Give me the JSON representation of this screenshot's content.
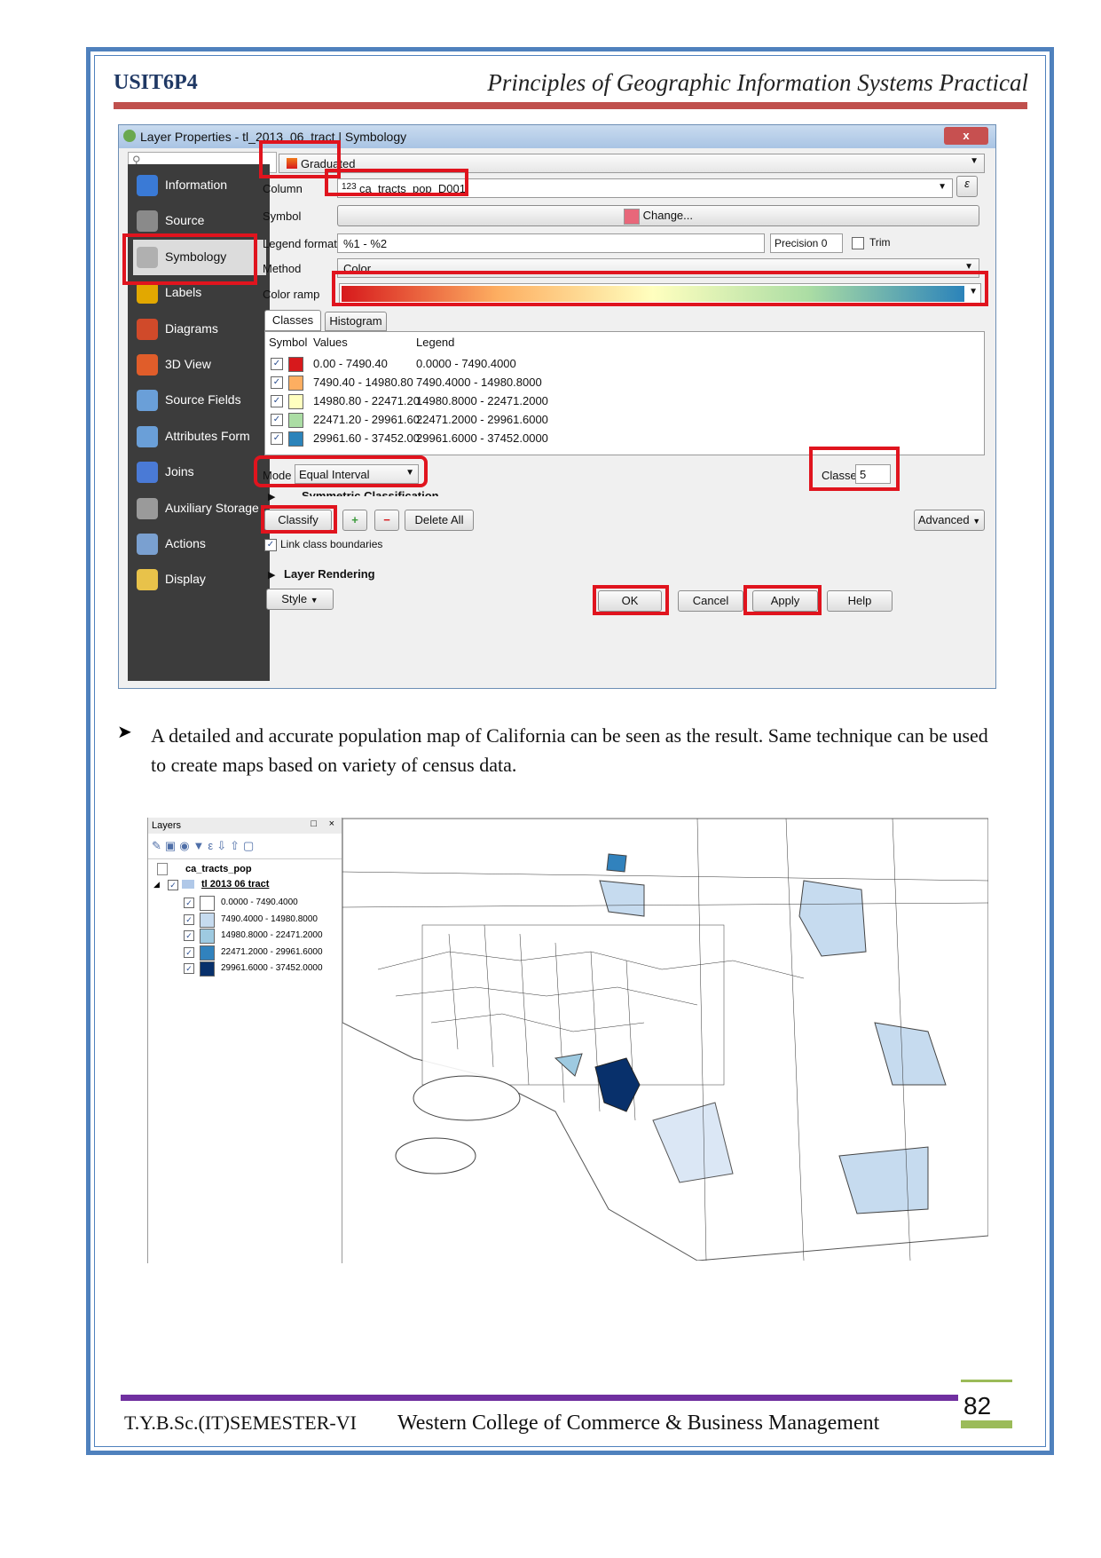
{
  "header": {
    "code": "USIT6P4",
    "title": "Principles of Geographic Information Systems Practical"
  },
  "dialog": {
    "title": "Layer Properties - tl_2013_06_tract | Symbology",
    "close": "x",
    "sidebar": [
      "Information",
      "Source",
      "Symbology",
      "Labels",
      "Diagrams",
      "3D View",
      "Source Fields",
      "Attributes Form",
      "Joins",
      "Auxiliary Storage",
      "Actions",
      "Display"
    ],
    "renderer": "Graduated",
    "column_label": "Column",
    "column_value": "ca_tracts_pop_D001",
    "column_prefix": "123",
    "symbol_label": "Symbol",
    "change_btn": "Change...",
    "legend_format_label": "Legend format",
    "legend_format_value": "%1 - %2",
    "precision_label": "Precision 0",
    "trim_label": "Trim",
    "method_label": "Method",
    "method_value": "Color",
    "color_ramp_label": "Color ramp",
    "tabs": [
      "Classes",
      "Histogram"
    ],
    "table_headers": [
      "Symbol",
      "Values",
      "Legend"
    ],
    "rows": [
      {
        "color": "#d7191c",
        "values": "0.00 - 7490.40",
        "legend": "0.0000 - 7490.4000"
      },
      {
        "color": "#fdae61",
        "values": "7490.40 - 14980.80",
        "legend": "7490.4000 - 14980.8000"
      },
      {
        "color": "#ffffbf",
        "values": "14980.80 - 22471.20",
        "legend": "14980.8000 - 22471.2000"
      },
      {
        "color": "#abdda4",
        "values": "22471.20 - 29961.60",
        "legend": "22471.2000 - 29961.6000"
      },
      {
        "color": "#2b83ba",
        "values": "29961.60 - 37452.00",
        "legend": "29961.6000 - 37452.0000"
      }
    ],
    "mode_label": "Mode",
    "mode_value": "Equal Interval",
    "classes_label": "Classes",
    "classes_value": "5",
    "symmetric": "Symmetric Classification",
    "classify_btn": "Classify",
    "delete_all_btn": "Delete All",
    "advanced_btn": "Advanced",
    "link_boundaries": "Link class boundaries",
    "layer_rendering": "Layer Rendering",
    "style_btn": "Style",
    "ok_btn": "OK",
    "cancel_btn": "Cancel",
    "apply_btn": "Apply",
    "help_btn": "Help"
  },
  "paragraph": "A detailed and accurate population map of California can be seen as the result. Same technique can be used to create maps based on variety of census data.",
  "layers_panel": {
    "title": "Layers",
    "layer1": "ca_tracts_pop",
    "layer2": "tl 2013 06 tract",
    "legend": [
      {
        "color": "#ffffff",
        "label": "0.0000 - 7490.4000"
      },
      {
        "color": "#c6dbef",
        "label": "7490.4000 - 14980.8000"
      },
      {
        "color": "#9ecae1",
        "label": "14980.8000 - 22471.2000"
      },
      {
        "color": "#3182bd",
        "label": "22471.2000 - 29961.6000"
      },
      {
        "color": "#08306b",
        "label": "29961.6000 - 37452.0000"
      }
    ]
  },
  "footer": {
    "left": "T.Y.B.Sc.(IT)SEMESTER-VI",
    "middle": "Western College of Commerce & Business Management",
    "page": "82"
  }
}
